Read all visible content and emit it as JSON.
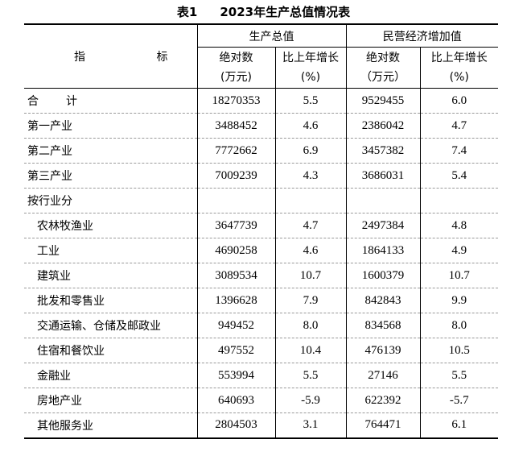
{
  "title": {
    "number": "表1",
    "text": "2023年生产总值情况表"
  },
  "header": {
    "indicator_char1": "指",
    "indicator_char2": "标",
    "group1": "生产总值",
    "group2": "民营经济增加值",
    "abs_label": "绝对数",
    "abs_unit": "(万元)",
    "abs_unit2": "（万元）",
    "growth_label": "比上年增长",
    "growth_unit": "(%)"
  },
  "total": {
    "name_char1": "合",
    "name_char2": "计",
    "gdp_abs": "18270353",
    "gdp_growth": "5.5",
    "priv_abs": "9529455",
    "priv_growth": "6.0"
  },
  "rows": [
    {
      "name": "第一产业",
      "gdp_abs": "3488452",
      "gdp_growth": "4.6",
      "priv_abs": "2386042",
      "priv_growth": "4.7"
    },
    {
      "name": "第二产业",
      "gdp_abs": "7772662",
      "gdp_growth": "6.9",
      "priv_abs": "3457382",
      "priv_growth": "7.4"
    },
    {
      "name": "第三产业",
      "gdp_abs": "7009239",
      "gdp_growth": "4.3",
      "priv_abs": "3686031",
      "priv_growth": "5.4"
    },
    {
      "name": "按行业分",
      "gdp_abs": "",
      "gdp_growth": "",
      "priv_abs": "",
      "priv_growth": ""
    },
    {
      "name": "农林牧渔业",
      "gdp_abs": "3647739",
      "gdp_growth": "4.7",
      "priv_abs": "2497384",
      "priv_growth": "4.8"
    },
    {
      "name": "工业",
      "gdp_abs": "4690258",
      "gdp_growth": "4.6",
      "priv_abs": "1864133",
      "priv_growth": "4.9"
    },
    {
      "name": "建筑业",
      "gdp_abs": "3089534",
      "gdp_growth": "10.7",
      "priv_abs": "1600379",
      "priv_growth": "10.7"
    },
    {
      "name": "批发和零售业",
      "gdp_abs": "1396628",
      "gdp_growth": "7.9",
      "priv_abs": "842843",
      "priv_growth": "9.9"
    },
    {
      "name": "交通运输、仓储及邮政业",
      "gdp_abs": "949452",
      "gdp_growth": "8.0",
      "priv_abs": "834568",
      "priv_growth": "8.0"
    },
    {
      "name": "住宿和餐饮业",
      "gdp_abs": "497552",
      "gdp_growth": "10.4",
      "priv_abs": "476139",
      "priv_growth": "10.5"
    },
    {
      "name": "金融业",
      "gdp_abs": "553994",
      "gdp_growth": "5.5",
      "priv_abs": "27146",
      "priv_growth": "5.5"
    },
    {
      "name": "房地产业",
      "gdp_abs": "640693",
      "gdp_growth": "-5.9",
      "priv_abs": "622392",
      "priv_growth": "-5.7"
    },
    {
      "name": "其他服务业",
      "gdp_abs": "2804503",
      "gdp_growth": "3.1",
      "priv_abs": "764471",
      "priv_growth": "6.1"
    }
  ]
}
